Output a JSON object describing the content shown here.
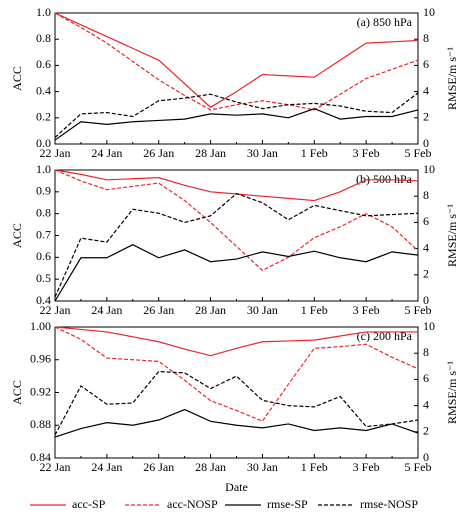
{
  "chart_data": [
    {
      "type": "line",
      "title": "(a)  850 hPa",
      "ylabel": "ACC",
      "y2label": "RMSE/m s⁻¹",
      "categories": [
        "22 Jan",
        null,
        "24 Jan",
        null,
        "26 Jan",
        null,
        "28 Jan",
        null,
        "30 Jan",
        null,
        "1 Feb",
        null,
        "3 Feb",
        null,
        "5 Feb"
      ],
      "ylim": [
        0,
        1
      ],
      "yticks": [
        {
          "value": 0,
          "label": "0.0"
        },
        0.2,
        0.4,
        0.6,
        0.8,
        {
          "value": 1,
          "label": "1.0"
        }
      ],
      "y2lim": [
        0,
        10
      ],
      "y2ticks": [
        0,
        2,
        4,
        6,
        8,
        10
      ],
      "series": [
        {
          "name": "acc-SP",
          "color": "#e8262a",
          "style": "solid",
          "values": [
            1.0,
            0.91,
            0.82,
            0.73,
            0.64,
            0.46,
            0.28,
            0.4,
            0.53,
            0.52,
            0.51,
            0.64,
            0.77,
            0.78,
            0.79
          ]
        },
        {
          "name": "acc-NOSP",
          "color": "#e8262a",
          "style": "dashed",
          "values": [
            1.0,
            0.89,
            0.77,
            0.63,
            0.49,
            0.37,
            0.26,
            0.3,
            0.33,
            0.3,
            0.26,
            0.38,
            0.5,
            0.57,
            0.64
          ]
        },
        {
          "name": "rmse-SP",
          "color": "#000000",
          "style": "solid",
          "axis": "y2",
          "values": [
            0.3,
            1.7,
            1.5,
            1.7,
            1.8,
            1.9,
            2.3,
            2.2,
            2.3,
            2.0,
            2.7,
            1.9,
            2.1,
            2.1,
            2.6
          ]
        },
        {
          "name": "rmse-NOSP",
          "color": "#000000",
          "style": "dashed",
          "axis": "y2",
          "values": [
            0.5,
            2.3,
            2.4,
            2.1,
            3.3,
            3.5,
            3.8,
            3.2,
            2.7,
            3.0,
            3.1,
            2.9,
            2.5,
            2.4,
            3.9
          ]
        }
      ]
    },
    {
      "type": "line",
      "title": "(b)  500 hPa",
      "ylabel": "ACC",
      "y2label": "RMSE/m s⁻¹",
      "categories": [
        "22 Jan",
        null,
        "24 Jan",
        null,
        "26 Jan",
        null,
        "28 Jan",
        null,
        "30 Jan",
        null,
        "1 Feb",
        null,
        "3 Feb",
        null,
        "5 Feb"
      ],
      "ylim": [
        0.4,
        1
      ],
      "yticks": [
        0.4,
        0.5,
        0.6,
        0.7,
        0.8,
        0.9,
        {
          "value": 1,
          "label": "1.0"
        }
      ],
      "y2lim": [
        0,
        10
      ],
      "y2ticks": [
        0,
        2,
        4,
        6,
        8,
        10
      ],
      "series": [
        {
          "name": "acc-SP",
          "color": "#e8262a",
          "style": "solid",
          "values": [
            1.0,
            0.98,
            0.955,
            0.96,
            0.965,
            0.93,
            0.9,
            0.89,
            0.88,
            0.87,
            0.86,
            0.9,
            0.955,
            0.955,
            0.95
          ]
        },
        {
          "name": "acc-NOSP",
          "color": "#e8262a",
          "style": "dashed",
          "values": [
            1.0,
            0.95,
            0.91,
            0.925,
            0.94,
            0.86,
            0.76,
            0.65,
            0.54,
            0.6,
            0.69,
            0.74,
            0.8,
            0.74,
            0.63
          ]
        },
        {
          "name": "rmse-SP",
          "color": "#000000",
          "style": "solid",
          "axis": "y2",
          "values": [
            0,
            3.3,
            3.3,
            4.3,
            3.3,
            3.9,
            3.0,
            3.2,
            3.75,
            3.4,
            3.8,
            3.3,
            3.0,
            3.75,
            3.5
          ]
        },
        {
          "name": "rmse-NOSP",
          "color": "#000000",
          "style": "dashed",
          "axis": "y2",
          "values": [
            0.3,
            4.8,
            4.5,
            7.0,
            6.7,
            6.0,
            6.5,
            8.2,
            7.5,
            6.2,
            7.3,
            6.9,
            6.5,
            6.6,
            6.7
          ]
        }
      ]
    },
    {
      "type": "line",
      "title": "(c)  200 hPa",
      "ylabel": "ACC",
      "y2label": "RMSE/m s⁻¹",
      "xlabel": "Date",
      "categories": [
        "22 Jan",
        null,
        "24 Jan",
        null,
        "26 Jan",
        null,
        "28 Jan",
        null,
        "30 Jan",
        null,
        "1 Feb",
        null,
        "3 Feb",
        null,
        "5 Feb"
      ],
      "ylim": [
        0.84,
        1
      ],
      "yticks": [
        0.84,
        0.88,
        0.92,
        0.96,
        {
          "value": 1,
          "label": "1.00"
        }
      ],
      "y2lim": [
        0,
        10
      ],
      "y2ticks": [
        0,
        2,
        4,
        6,
        8,
        10
      ],
      "series": [
        {
          "name": "acc-SP",
          "color": "#e8262a",
          "style": "solid",
          "values": [
            1.0,
            0.997,
            0.994,
            0.988,
            0.982,
            0.973,
            0.965,
            0.974,
            0.982,
            0.983,
            0.984,
            0.989,
            0.994,
            0.994,
            0.994
          ]
        },
        {
          "name": "acc-NOSP",
          "color": "#e8262a",
          "style": "dashed",
          "values": [
            1.0,
            0.985,
            0.962,
            0.96,
            0.958,
            0.935,
            0.91,
            0.898,
            0.885,
            0.93,
            0.974,
            0.976,
            0.979,
            0.963,
            0.949
          ]
        },
        {
          "name": "rmse-SP",
          "color": "#000000",
          "style": "solid",
          "axis": "y2",
          "values": [
            1.6,
            2.25,
            2.7,
            2.5,
            2.9,
            3.7,
            2.8,
            2.5,
            2.3,
            2.6,
            2.1,
            2.3,
            2.1,
            2.6,
            1.9
          ]
        },
        {
          "name": "rmse-NOSP",
          "color": "#000000",
          "style": "dashed",
          "axis": "y2",
          "values": [
            1.75,
            5.5,
            4.1,
            4.2,
            6.6,
            6.5,
            5.3,
            6.25,
            4.4,
            4.0,
            3.9,
            4.7,
            2.4,
            2.6,
            2.9
          ]
        }
      ]
    }
  ]
}
